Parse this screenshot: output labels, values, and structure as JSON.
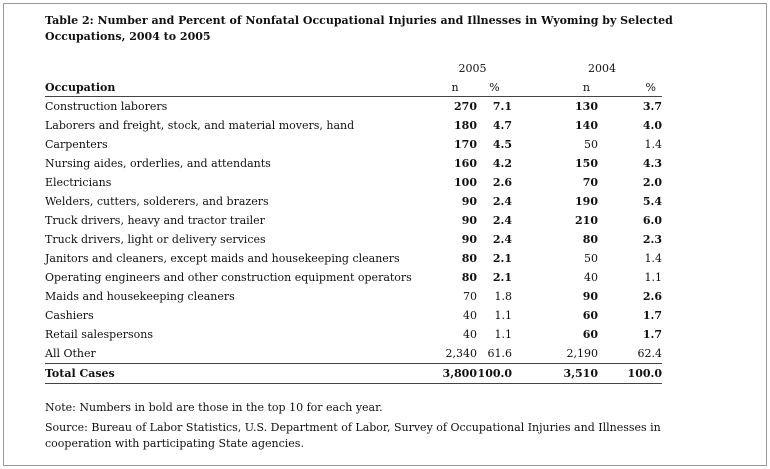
{
  "title": "Table 2: Number and Percent of Nonfatal Occupational Injuries and Illnesses in Wyoming by Selected Occupations, 2004 to 2005",
  "table": {
    "years": [
      "2005",
      "2004"
    ],
    "columns": [
      "Occupation",
      "n",
      "%",
      "n",
      "%"
    ],
    "rows": [
      [
        "Construction laborers",
        "270",
        "7.1",
        "130",
        "3.7"
      ],
      [
        "Laborers and freight, stock, and material movers, hand",
        "180",
        "4.7",
        "140",
        "4.0"
      ],
      [
        "Carpenters",
        "170",
        "4.5",
        "50",
        "1.4"
      ],
      [
        "Nursing aides, orderlies, and attendants",
        "160",
        "4.2",
        "150",
        "4.3"
      ],
      [
        "Electricians",
        "100",
        "2.6",
        "70",
        "2.0"
      ],
      [
        "Welders, cutters, solderers, and brazers",
        "90",
        "2.4",
        "190",
        "5.4"
      ],
      [
        "Truck drivers, heavy and tractor trailer",
        "90",
        "2.4",
        "210",
        "6.0"
      ],
      [
        "Truck drivers, light or delivery services",
        "90",
        "2.4",
        "80",
        "2.3"
      ],
      [
        "Janitors and cleaners, except maids and housekeeping cleaners",
        "80",
        "2.1",
        "50",
        "1.4"
      ],
      [
        "Operating engineers and other construction equipment operators",
        "80",
        "2.1",
        "40",
        "1.1"
      ],
      [
        "Maids and housekeeping cleaners",
        "70",
        "1.8",
        "90",
        "2.6"
      ],
      [
        "Cashiers",
        "40",
        "1.1",
        "60",
        "1.7"
      ],
      [
        "Retail salespersons",
        "40",
        "1.1",
        "60",
        "1.7"
      ],
      [
        "All Other",
        "2,340",
        "61.6",
        "2,190",
        "62.4"
      ]
    ],
    "bold": [
      [
        false,
        true,
        true,
        true,
        true
      ],
      [
        false,
        true,
        true,
        true,
        true
      ],
      [
        false,
        true,
        true,
        false,
        false
      ],
      [
        false,
        true,
        true,
        true,
        true
      ],
      [
        false,
        true,
        true,
        true,
        true
      ],
      [
        false,
        true,
        true,
        true,
        true
      ],
      [
        false,
        true,
        true,
        true,
        true
      ],
      [
        false,
        true,
        true,
        true,
        true
      ],
      [
        false,
        true,
        true,
        false,
        false
      ],
      [
        false,
        true,
        true,
        false,
        false
      ],
      [
        false,
        false,
        false,
        true,
        true
      ],
      [
        false,
        false,
        false,
        true,
        true
      ],
      [
        false,
        false,
        false,
        true,
        true
      ],
      [
        false,
        false,
        false,
        false,
        false
      ]
    ],
    "total": [
      "Total Cases",
      "3,800",
      "100.0",
      "3,510",
      "100.0"
    ]
  },
  "notes": [
    "Note: Numbers in bold are those in the top 10 for each year.",
    "Source: Bureau of Labor Statistics, U.S. Department of Labor, Survey of Occupational Injuries and Illnesses in cooperation with participating State agencies."
  ]
}
